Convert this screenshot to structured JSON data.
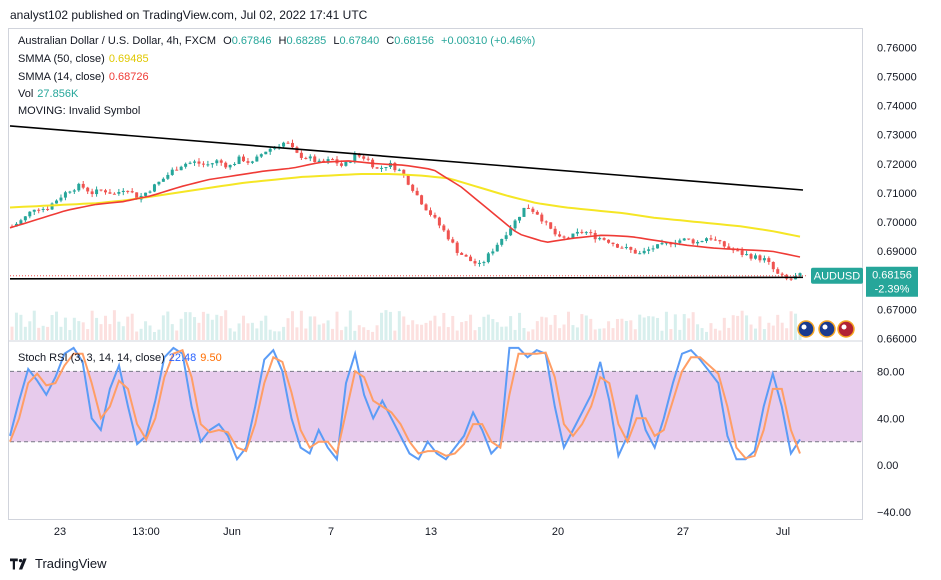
{
  "header": {
    "publish_line": "analyst102 published on TradingView.com, Jul 02, 2022 17:41 UTC"
  },
  "legend": {
    "symbol": "Australian Dollar / U.S. Dollar, 4h, FXCM",
    "open_label": "O",
    "open": "0.67846",
    "high_label": "H",
    "high": "0.68285",
    "low_label": "L",
    "low": "0.67840",
    "close_label": "C",
    "close": "0.68156",
    "change": "+0.00310 (+0.46%)",
    "smma50_label": "SMMA (50, close)",
    "smma50_value": "0.69485",
    "smma14_label": "SMMA (14, close)",
    "smma14_value": "0.68726",
    "vol_label": "Vol",
    "vol_value": "27.856K",
    "moving_label": "MOVING: Invalid Symbol"
  },
  "price_tag": {
    "symbol": "AUDUSD",
    "price": "0.68156",
    "change": "-2.39%"
  },
  "stoch": {
    "label": "Stoch RSI (3, 3, 14, 14, close)",
    "k_value": "22.48",
    "d_value": "9.50"
  },
  "footer": {
    "brand": "TradingView"
  },
  "colors": {
    "up": "#26a69a",
    "down": "#ef5350",
    "smma50": "#f5e625",
    "smma14": "#ef3b36",
    "k_line": "#5b9cf6",
    "d_line": "#ff9e66",
    "band": "#e1bee7"
  },
  "chart_data": [
    {
      "type": "candlestick",
      "title": "Australian Dollar / U.S. Dollar, 4h, FXCM",
      "y_ticks": [
        "0.76000",
        "0.75000",
        "0.74000",
        "0.73000",
        "0.72000",
        "0.71000",
        "0.70000",
        "0.69000",
        "0.68000",
        "0.67000",
        "0.66000"
      ],
      "ylim": [
        0.6595,
        0.7625
      ],
      "x_ticks": [
        "23",
        "13:00",
        "Jun",
        "7",
        "13",
        "20",
        "27",
        "Jul"
      ],
      "close_path": [
        0.6985,
        0.701,
        0.705,
        0.7045,
        0.708,
        0.711,
        0.7125,
        0.71,
        0.711,
        0.7095,
        0.712,
        0.708,
        0.711,
        0.714,
        0.7175,
        0.72,
        0.7205,
        0.7195,
        0.721,
        0.719,
        0.722,
        0.72,
        0.724,
        0.726,
        0.7275,
        0.723,
        0.722,
        0.72,
        0.7215,
        0.719,
        0.723,
        0.722,
        0.718,
        0.72,
        0.7175,
        0.712,
        0.706,
        0.701,
        0.696,
        0.69,
        0.687,
        0.685,
        0.69,
        0.695,
        0.7,
        0.7055,
        0.703,
        0.698,
        0.694,
        0.695,
        0.697,
        0.695,
        0.694,
        0.692,
        0.6905,
        0.689,
        0.691,
        0.692,
        0.6935,
        0.694,
        0.693,
        0.695,
        0.6925,
        0.6905,
        0.689,
        0.688,
        0.687,
        0.682,
        0.68,
        0.6816
      ],
      "smma50": [
        0.705,
        0.7055,
        0.706,
        0.7065,
        0.7075,
        0.709,
        0.7105,
        0.712,
        0.7135,
        0.7145,
        0.7155,
        0.716,
        0.7165,
        0.7165,
        0.716,
        0.715,
        0.712,
        0.709,
        0.7065,
        0.705,
        0.704,
        0.703,
        0.7015,
        0.7005,
        0.6995,
        0.6985,
        0.697,
        0.695
      ],
      "smma14": [
        0.698,
        0.701,
        0.704,
        0.706,
        0.707,
        0.709,
        0.712,
        0.7145,
        0.716,
        0.7175,
        0.7185,
        0.7205,
        0.721,
        0.72,
        0.7195,
        0.718,
        0.712,
        0.704,
        0.696,
        0.693,
        0.6945,
        0.6955,
        0.695,
        0.6935,
        0.692,
        0.691,
        0.6905,
        0.69,
        0.688
      ],
      "trendline_upper": [
        [
          0.733
        ],
        [
          0.711
        ]
      ],
      "trendline_lower": [
        [
          0.6805
        ],
        [
          0.681
        ]
      ]
    },
    {
      "type": "line",
      "title": "Stoch RSI (3, 3, 14, 14, close)",
      "y_ticks": [
        "80.00",
        "40.00",
        "0.00",
        "−40.00"
      ],
      "ylim": [
        -45,
        105
      ],
      "band": [
        20,
        80
      ],
      "series": [
        {
          "name": "K",
          "last": 22.48
        },
        {
          "name": "D",
          "last": 9.5
        }
      ],
      "k_values": [
        25,
        55,
        82,
        72,
        60,
        75,
        95,
        100,
        88,
        40,
        30,
        65,
        85,
        50,
        18,
        25,
        55,
        92,
        100,
        95,
        50,
        20,
        30,
        35,
        25,
        5,
        15,
        50,
        90,
        98,
        80,
        40,
        15,
        10,
        30,
        15,
        5,
        70,
        95,
        60,
        40,
        55,
        40,
        25,
        10,
        5,
        20,
        10,
        5,
        15,
        25,
        45,
        30,
        10,
        18,
        100,
        100,
        92,
        98,
        95,
        50,
        15,
        30,
        45,
        60,
        88,
        55,
        8,
        25,
        60,
        30,
        15,
        40,
        70,
        95,
        98,
        90,
        80,
        70,
        25,
        5,
        5,
        12,
        50,
        78,
        50,
        10,
        22
      ],
      "d_values": [
        20,
        40,
        70,
        78,
        68,
        70,
        85,
        95,
        95,
        70,
        40,
        50,
        72,
        65,
        35,
        22,
        40,
        75,
        95,
        98,
        75,
        35,
        28,
        30,
        28,
        15,
        12,
        35,
        70,
        92,
        88,
        62,
        30,
        15,
        20,
        20,
        10,
        45,
        80,
        75,
        55,
        50,
        45,
        35,
        20,
        10,
        12,
        12,
        8,
        10,
        18,
        35,
        35,
        20,
        15,
        60,
        95,
        95,
        95,
        96,
        75,
        35,
        25,
        35,
        50,
        75,
        70,
        35,
        20,
        40,
        40,
        25,
        30,
        55,
        80,
        92,
        92,
        85,
        78,
        50,
        15,
        6,
        8,
        30,
        65,
        65,
        30,
        10
      ]
    }
  ]
}
